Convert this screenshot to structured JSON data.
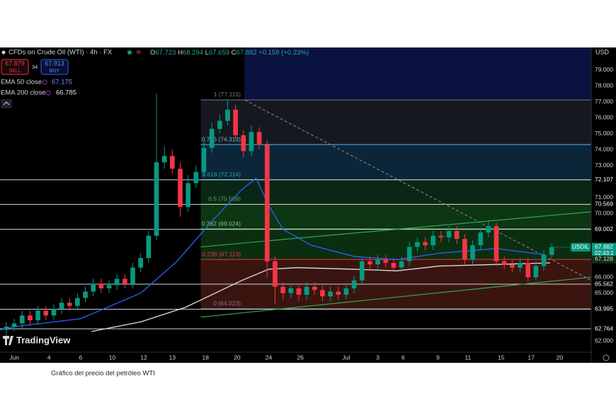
{
  "header": {
    "symbol": "CFDs on Crude Oil (WTI) · 4h · FX",
    "ohlc": [
      {
        "k": "O",
        "v": "67.723"
      },
      {
        "k": "H",
        "v": "68.294"
      },
      {
        "k": "L",
        "v": "67.659"
      },
      {
        "k": "C",
        "v": "67.882"
      }
    ],
    "change": "+0.159 (+0.23%)",
    "sell": {
      "price": "67.879",
      "label": "SELL"
    },
    "spread": "34",
    "buy": {
      "price": "67.913",
      "label": "BUY"
    },
    "indicators": [
      {
        "name": "EMA 50 close",
        "value": "67.175"
      },
      {
        "name": "EMA 200 close",
        "value": "66.785"
      }
    ],
    "currency": "USD",
    "logo": "TradingView"
  },
  "caption": "Gráfico del precio del petróleo WTI",
  "chart_data": {
    "type": "candlestick",
    "xlim": [
      -0.9,
      36.5
    ],
    "ylim": [
      61.3,
      80.4
    ],
    "xticks": [
      {
        "value": 0,
        "label": "Jun"
      },
      {
        "value": 2.2,
        "label": "4"
      },
      {
        "value": 4.2,
        "label": "6"
      },
      {
        "value": 6.2,
        "label": "10"
      },
      {
        "value": 8.2,
        "label": "12"
      },
      {
        "value": 10.0,
        "label": "13"
      },
      {
        "value": 12.1,
        "label": "18"
      },
      {
        "value": 14.1,
        "label": "20"
      },
      {
        "value": 16.1,
        "label": "24"
      },
      {
        "value": 18.1,
        "label": "26"
      },
      {
        "value": 21.0,
        "label": "Jul"
      },
      {
        "value": 23.0,
        "label": "3"
      },
      {
        "value": 24.6,
        "label": "6"
      },
      {
        "value": 26.8,
        "label": "9"
      },
      {
        "value": 28.7,
        "label": "11"
      },
      {
        "value": 30.8,
        "label": "15"
      },
      {
        "value": 32.7,
        "label": "17"
      },
      {
        "value": 34.5,
        "label": "20"
      }
    ],
    "yticks": [
      {
        "value": 79,
        "label": "79.000"
      },
      {
        "value": 78,
        "label": "78.000"
      },
      {
        "value": 77,
        "label": "77.000"
      },
      {
        "value": 76,
        "label": "76.000"
      },
      {
        "value": 75,
        "label": "75.000"
      },
      {
        "value": 74,
        "label": "74.000"
      },
      {
        "value": 73,
        "label": "73.000"
      },
      {
        "value": 71,
        "label": "71.000"
      },
      {
        "value": 70,
        "label": "70.000"
      },
      {
        "value": 66,
        "label": "66.000"
      },
      {
        "value": 65,
        "label": "65.000"
      },
      {
        "value": 62,
        "label": "62.000"
      }
    ],
    "up_color": "#089981",
    "down_color": "#f23645",
    "x": [
      -0.5,
      0,
      0.5,
      1,
      1.5,
      2,
      2.5,
      3,
      3.5,
      4,
      4.5,
      5,
      5.5,
      6,
      6.5,
      7,
      7.5,
      8,
      8.5,
      9,
      9.5,
      10,
      10.5,
      11,
      11.5,
      12,
      12.5,
      13,
      13.5,
      14,
      14.5,
      15,
      15.5,
      16,
      16.5,
      17,
      17.5,
      18,
      18.5,
      19,
      19.5,
      20,
      20.5,
      21,
      21.5,
      22,
      22.5,
      23,
      23.5,
      24,
      24.5,
      25,
      25.5,
      26,
      26.5,
      27,
      27.5,
      28,
      28.5,
      29,
      29.5,
      30,
      30.5,
      31,
      31.5,
      32,
      32.5,
      33,
      33.5,
      34
    ],
    "open": [
      62.7,
      62.9,
      63.1,
      63.6,
      63.3,
      63.9,
      63.6,
      64.0,
      64.4,
      64.2,
      64.7,
      65.1,
      65.6,
      65.3,
      65.5,
      65.9,
      65.6,
      66.6,
      67.2,
      68.6,
      73.2,
      73.6,
      72.8,
      70.4,
      71.9,
      72.6,
      74.1,
      75.3,
      75.8,
      76.5,
      74.9,
      73.9,
      75.1,
      74.3,
      67.0,
      65.4,
      65.0,
      65.3,
      64.9,
      65.4,
      65.2,
      64.8,
      65.1,
      64.9,
      65.3,
      65.8,
      67.0,
      66.8,
      67.1,
      66.9,
      66.6,
      67.0,
      67.9,
      68.2,
      68.0,
      68.6,
      68.5,
      68.9,
      68.4,
      67.1,
      68.0,
      68.8,
      69.2,
      67.0,
      66.8,
      66.6,
      66.9,
      66.0,
      66.7,
      67.4
    ],
    "high": [
      63.2,
      63.4,
      63.9,
      63.9,
      64.2,
      64.2,
      64.3,
      64.7,
      64.7,
      65.0,
      65.4,
      65.9,
      65.9,
      65.8,
      66.2,
      66.2,
      66.9,
      67.5,
      68.9,
      77.5,
      74.2,
      74.0,
      73.2,
      72.4,
      73.0,
      74.5,
      75.7,
      76.2,
      77.1,
      76.8,
      75.2,
      75.5,
      75.4,
      74.6,
      67.3,
      65.7,
      65.6,
      65.6,
      65.7,
      65.7,
      65.5,
      65.4,
      65.4,
      65.6,
      66.1,
      67.3,
      67.3,
      67.4,
      67.4,
      67.2,
      67.3,
      68.2,
      68.5,
      68.5,
      68.9,
      68.9,
      69.2,
      69.2,
      68.7,
      68.3,
      69.1,
      69.5,
      69.4,
      67.3,
      67.1,
      67.2,
      67.2,
      67.0,
      67.7,
      68.1
    ],
    "low": [
      62.0,
      62.6,
      62.8,
      63.0,
      63.0,
      63.3,
      63.3,
      63.7,
      63.9,
      63.9,
      64.4,
      64.8,
      65.0,
      65.0,
      65.2,
      65.3,
      65.3,
      66.3,
      66.9,
      68.3,
      72.8,
      72.5,
      69.8,
      70.1,
      71.6,
      72.3,
      73.8,
      75.0,
      75.5,
      74.6,
      73.5,
      73.6,
      74.0,
      66.0,
      64.3,
      64.6,
      64.7,
      64.5,
      64.6,
      64.9,
      64.5,
      64.5,
      64.6,
      64.6,
      65.0,
      65.5,
      66.4,
      66.5,
      66.6,
      66.3,
      66.3,
      66.7,
      67.6,
      67.7,
      67.7,
      68.2,
      68.2,
      68.1,
      66.8,
      66.8,
      67.7,
      68.5,
      66.7,
      66.5,
      66.3,
      66.3,
      65.7,
      65.8,
      66.4,
      67.2
    ],
    "close": [
      62.9,
      63.1,
      63.6,
      63.3,
      63.9,
      63.6,
      64.0,
      64.4,
      64.2,
      64.7,
      65.1,
      65.6,
      65.3,
      65.5,
      65.9,
      65.6,
      66.6,
      67.2,
      68.6,
      73.2,
      73.6,
      72.8,
      70.4,
      71.9,
      72.6,
      74.1,
      75.3,
      75.8,
      76.5,
      74.9,
      73.9,
      75.1,
      74.3,
      67.0,
      65.4,
      65.0,
      65.3,
      64.9,
      65.4,
      65.2,
      64.8,
      65.1,
      64.9,
      65.3,
      65.8,
      67.0,
      66.8,
      67.1,
      66.9,
      66.6,
      67.0,
      67.9,
      68.2,
      68.0,
      68.6,
      68.5,
      68.9,
      68.4,
      67.1,
      68.0,
      68.8,
      69.2,
      67.0,
      66.8,
      66.6,
      66.9,
      66.0,
      66.7,
      67.4,
      67.88
    ],
    "lines": [
      {
        "name": "EMA 50",
        "color": "#2962ff",
        "x": [
          -0.9,
          0,
          4.2,
          8,
          10.3,
          12.5,
          14.4,
          15.3,
          16.1,
          17,
          18.8,
          21.5,
          24.2,
          26.9,
          30.5,
          33.6
        ],
        "values": [
          62.7,
          62.9,
          63.4,
          65.0,
          67.0,
          69.5,
          71.5,
          72.2,
          70.5,
          69.0,
          68.0,
          67.3,
          67.1,
          67.5,
          67.8,
          67.4
        ]
      },
      {
        "name": "EMA 200",
        "color": "#e0e0e0",
        "x": [
          4.9,
          8,
          10.8,
          12.5,
          14.4,
          16.1,
          17.9,
          21.5,
          24.2,
          26.9,
          30.5,
          33.9
        ],
        "values": [
          62.6,
          63.2,
          64.1,
          64.9,
          65.8,
          66.5,
          66.6,
          66.5,
          66.4,
          66.7,
          66.8,
          66.9
        ]
      }
    ],
    "trendlines": [
      {
        "color": "#2ea84a",
        "dash": false,
        "x": [
          11.8,
          36.5
        ],
        "y": [
          67.9,
          70.1
        ]
      },
      {
        "color": "#2ea84a",
        "dash": false,
        "x": [
          11.8,
          36.5
        ],
        "y": [
          63.5,
          66.0
        ]
      },
      {
        "color": "#787b86",
        "dash": true,
        "x": [
          14.6,
          36.5
        ],
        "y": [
          77.1,
          65.8
        ]
      }
    ],
    "fib": {
      "x_start": 11.8,
      "levels": [
        {
          "value": 77.115,
          "label": "1 (77.115)",
          "color": "#787b86",
          "zone": "#15191f"
        },
        {
          "value": 74.313,
          "label": "0.786 (74.313)",
          "color": "#64b5f6",
          "zone": "#0a2638"
        },
        {
          "value": 72.114,
          "label": "0.618 (72.114)",
          "color": "#26a69a",
          "zone": "#0a2616"
        },
        {
          "value": 70.569,
          "label": "0.5 (70.569)",
          "color": "#4caf50",
          "zone": "#0d3612"
        },
        {
          "value": 69.024,
          "label": "0.382 (69.024)",
          "color": "#81c784",
          "zone": "#0b2e10"
        },
        {
          "value": 67.113,
          "label": "0.236 (67.113)",
          "color": "#f23645",
          "zone": "#3a1510"
        },
        {
          "value": 64.023,
          "label": "0 (64.023)",
          "color": "#787b86"
        }
      ]
    },
    "hlines": [
      72.107,
      70.569,
      69.002,
      65.562,
      63.995,
      62.764
    ],
    "price_tags": {
      "symbol": "USOIL",
      "last": 67.882,
      "countdown": "02:43:1",
      "level": 67.128
    }
  }
}
